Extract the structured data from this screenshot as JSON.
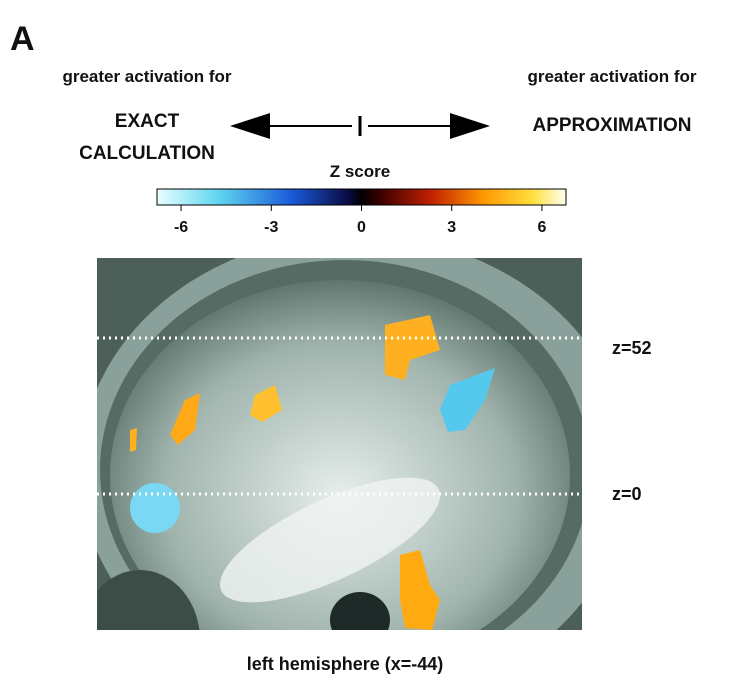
{
  "panel_label": "A",
  "left_label": {
    "heading": "greater activation for",
    "lines": [
      "EXACT",
      "CALCULATION"
    ]
  },
  "right_label": {
    "heading": "greater activation for",
    "lines": [
      "APPROXIMATION"
    ]
  },
  "colorbar": {
    "title": "Z score",
    "lim": [
      -6.8,
      6.8
    ],
    "ticks": [
      -6,
      -3,
      0,
      3,
      6
    ]
  },
  "slice_lines": [
    "z=52",
    "z=0"
  ],
  "caption": "left hemisphere (x=-44)"
}
